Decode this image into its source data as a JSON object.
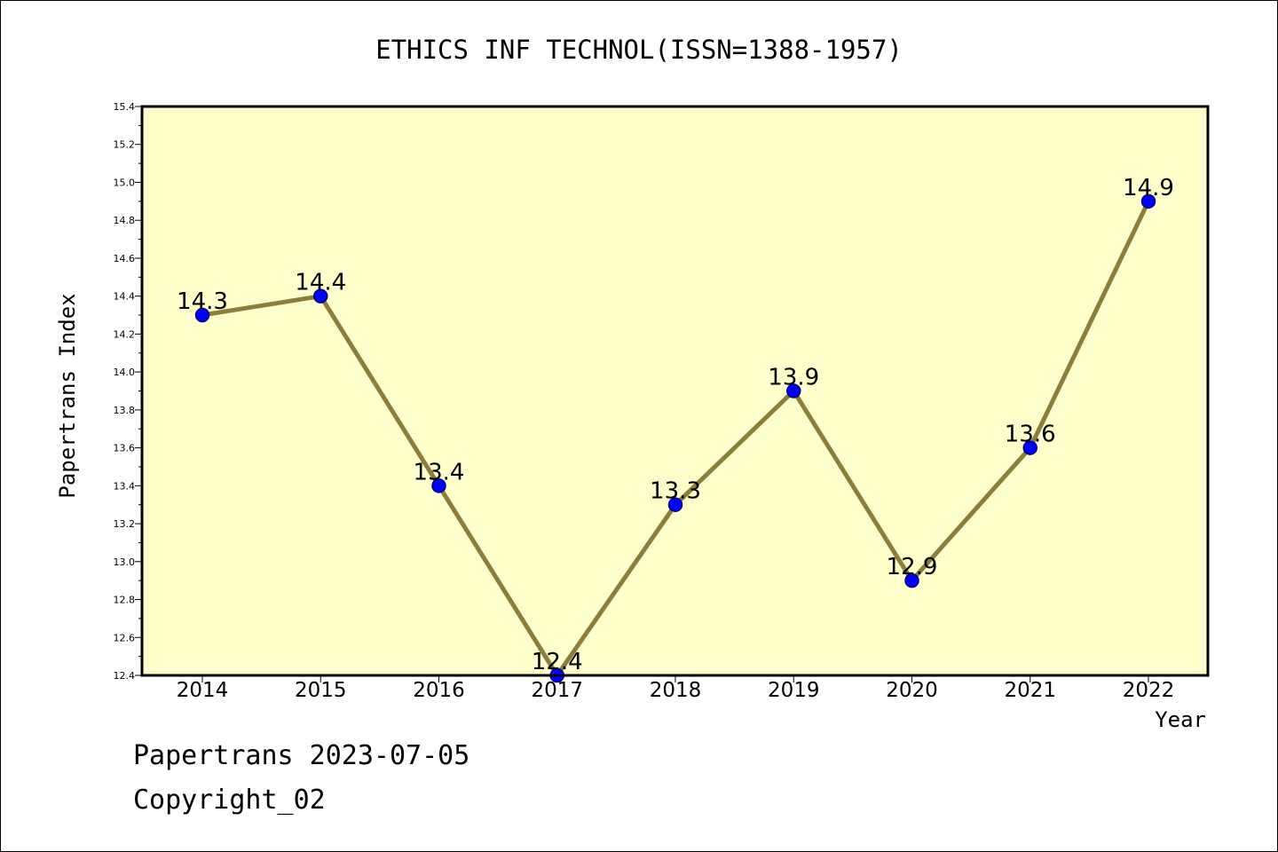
{
  "chart_data": {
    "type": "line",
    "title": "ETHICS INF TECHNOL(ISSN=1388-1957)",
    "xlabel": "Year",
    "ylabel": "Papertrans Index",
    "categories": [
      "2014",
      "2015",
      "2016",
      "2017",
      "2018",
      "2019",
      "2020",
      "2021",
      "2022"
    ],
    "series": [
      {
        "values": [
          14.3,
          14.4,
          13.4,
          12.4,
          13.3,
          13.9,
          12.9,
          13.6,
          14.9
        ],
        "data_labels": [
          "14.3",
          "14.4",
          "13.4",
          "12.4",
          "13.3",
          "13.9",
          "12.9",
          "13.6",
          "14.9"
        ]
      }
    ],
    "ylim": [
      12.4,
      15.4
    ],
    "yticks": [
      "12.4",
      "12.6",
      "12.8",
      "13.0",
      "13.2",
      "13.4",
      "13.6",
      "13.8",
      "14.0",
      "14.2",
      "14.4",
      "14.6",
      "14.8",
      "15.0",
      "15.2",
      "15.4"
    ],
    "grid": false,
    "legend": "none",
    "colors": {
      "plot_background": "#ffffcc",
      "line": "#8b7d3a",
      "marker": "#0000ff",
      "marker_edge": "#000080"
    }
  },
  "footer": {
    "date_text": "Papertrans 2023-07-05",
    "copyright_text": "Copyright_02"
  }
}
